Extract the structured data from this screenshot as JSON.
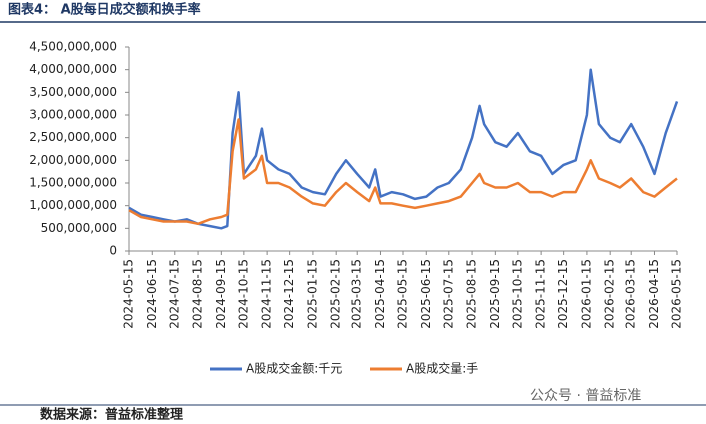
{
  "chart_data": {
    "type": "line",
    "title": "图表4： A股每日成交额和换手率",
    "source": "数据来源：普益标准整理",
    "watermark": "公众号 · 普益标准",
    "x": [
      "2024-05-15",
      "2024-05-31",
      "2024-06-15",
      "2024-06-30",
      "2024-07-15",
      "2024-07-31",
      "2024-08-15",
      "2024-08-31",
      "2024-09-15",
      "2024-09-23",
      "2024-09-30",
      "2024-10-08",
      "2024-10-15",
      "2024-10-31",
      "2024-11-08",
      "2024-11-15",
      "2024-11-30",
      "2024-12-15",
      "2024-12-31",
      "2025-01-15",
      "2025-01-31",
      "2025-02-15",
      "2025-02-28",
      "2025-03-15",
      "2025-03-31",
      "2025-04-08",
      "2025-04-15",
      "2025-04-30",
      "2025-05-15",
      "2025-05-31",
      "2025-06-15",
      "2025-06-30",
      "2025-07-15",
      "2025-07-31",
      "2025-08-15",
      "2025-08-25",
      "2025-08-31",
      "2025-09-15",
      "2025-09-30",
      "2025-10-15",
      "2025-10-31",
      "2025-11-15",
      "2025-11-30",
      "2025-12-15",
      "2025-12-31",
      "2026-01-15",
      "2026-01-20",
      "2026-01-31",
      "2026-02-15",
      "2026-02-28",
      "2026-03-15",
      "2026-03-31",
      "2026-04-15",
      "2026-04-30",
      "2026-05-15"
    ],
    "series": [
      {
        "name": "A股成交金额:千元",
        "color": "#4472c4",
        "values": [
          950000000,
          800000000,
          750000000,
          700000000,
          650000000,
          700000000,
          600000000,
          550000000,
          500000000,
          550000000,
          2600000000,
          3500000000,
          1700000000,
          2100000000,
          2700000000,
          2000000000,
          1800000000,
          1700000000,
          1400000000,
          1300000000,
          1250000000,
          1700000000,
          2000000000,
          1700000000,
          1400000000,
          1800000000,
          1200000000,
          1300000000,
          1250000000,
          1150000000,
          1200000000,
          1400000000,
          1500000000,
          1800000000,
          2500000000,
          3200000000,
          2800000000,
          2400000000,
          2300000000,
          2600000000,
          2200000000,
          2100000000,
          1700000000,
          1900000000,
          2000000000,
          3000000000,
          4000000000,
          2800000000,
          2500000000,
          2400000000,
          2800000000,
          2300000000,
          1700000000,
          2600000000,
          3300000000
        ]
      },
      {
        "name": "A股成交量:手",
        "color": "#ed7d31",
        "values": [
          900000000,
          750000000,
          700000000,
          650000000,
          650000000,
          650000000,
          600000000,
          700000000,
          750000000,
          800000000,
          2200000000,
          2900000000,
          1600000000,
          1800000000,
          2100000000,
          1500000000,
          1500000000,
          1400000000,
          1200000000,
          1050000000,
          1000000000,
          1300000000,
          1500000000,
          1300000000,
          1100000000,
          1400000000,
          1050000000,
          1050000000,
          1000000000,
          950000000,
          1000000000,
          1050000000,
          1100000000,
          1200000000,
          1500000000,
          1700000000,
          1500000000,
          1400000000,
          1400000000,
          1500000000,
          1300000000,
          1300000000,
          1200000000,
          1300000000,
          1300000000,
          1800000000,
          2000000000,
          1600000000,
          1500000000,
          1400000000,
          1600000000,
          1300000000,
          1200000000,
          1400000000,
          1600000000
        ]
      }
    ],
    "xlim": [
      "2024-05-15",
      "2026-05-15"
    ],
    "xticks": [
      "2024-05-15",
      "2024-06-15",
      "2024-07-15",
      "2024-08-15",
      "2024-09-15",
      "2024-10-15",
      "2024-11-15",
      "2024-12-15",
      "2025-01-15",
      "2025-02-15",
      "2025-03-15",
      "2025-04-15",
      "2025-05-15",
      "2025-06-15",
      "2025-07-15",
      "2025-08-15",
      "2025-09-15",
      "2025-10-15",
      "2025-11-15",
      "2025-12-15",
      "2026-01-15",
      "2026-02-15",
      "2026-03-15",
      "2026-04-15",
      "2026-05-15"
    ],
    "ylim": [
      0,
      4500000000
    ],
    "yticks": [
      0,
      {
        "value": 500000000,
        "label": "500,000,000"
      },
      {
        "value": 1000000000,
        "label": "1,000,000,000"
      },
      {
        "value": 1500000000,
        "label": "1,500,000,000"
      },
      {
        "value": 2000000000,
        "label": "2,000,000,000"
      },
      {
        "value": 2500000000,
        "label": "2,500,000,000"
      },
      {
        "value": 3000000000,
        "label": "3,000,000,000"
      },
      {
        "value": 3500000000,
        "label": "3,500,000,000"
      },
      {
        "value": 4000000000,
        "label": "4,000,000,000"
      },
      {
        "value": 4500000000,
        "label": "4,500,000,000"
      }
    ],
    "legend": "bottom"
  }
}
